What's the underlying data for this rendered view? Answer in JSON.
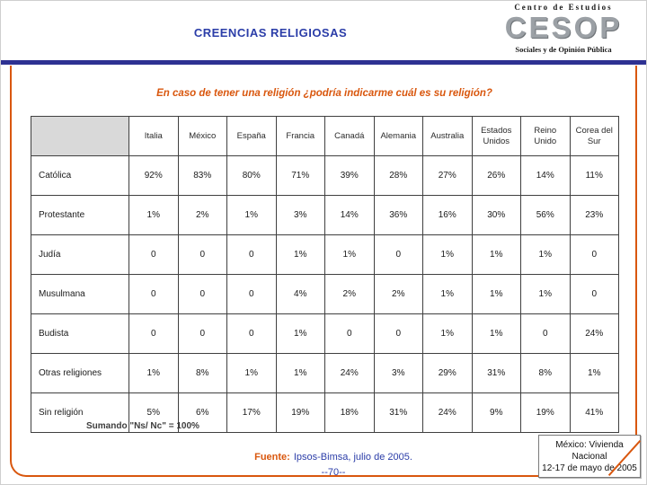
{
  "header": {
    "title": "CREENCIAS RELIGIOSAS",
    "logo": {
      "top": "Centro de Estudios",
      "main": "CESOP",
      "bottom": "Sociales y de Opinión Pública"
    }
  },
  "question": "En caso de tener una religión ¿podría indicarme cuál es su religión?",
  "chart_data": {
    "type": "table",
    "columns": [
      "",
      "Italia",
      "México",
      "España",
      "Francia",
      "Canadá",
      "Alemania",
      "Australia",
      "Estados Unidos",
      "Reino Unido",
      "Corea del Sur"
    ],
    "rows": [
      {
        "label": "Católica",
        "values": [
          "92%",
          "83%",
          "80%",
          "71%",
          "39%",
          "28%",
          "27%",
          "26%",
          "14%",
          "11%"
        ]
      },
      {
        "label": "Protestante",
        "values": [
          "1%",
          "2%",
          "1%",
          "3%",
          "14%",
          "36%",
          "16%",
          "30%",
          "56%",
          "23%"
        ]
      },
      {
        "label": "Judía",
        "values": [
          "0",
          "0",
          "0",
          "1%",
          "1%",
          "0",
          "1%",
          "1%",
          "1%",
          "0"
        ]
      },
      {
        "label": "Musulmana",
        "values": [
          "0",
          "0",
          "0",
          "4%",
          "2%",
          "2%",
          "1%",
          "1%",
          "1%",
          "0"
        ]
      },
      {
        "label": "Budista",
        "values": [
          "0",
          "0",
          "0",
          "1%",
          "0",
          "0",
          "1%",
          "1%",
          "0",
          "24%"
        ]
      },
      {
        "label": "Otras religiones",
        "values": [
          "1%",
          "8%",
          "1%",
          "1%",
          "24%",
          "3%",
          "29%",
          "31%",
          "8%",
          "1%"
        ]
      },
      {
        "label": "Sin religión",
        "values": [
          "5%",
          "6%",
          "17%",
          "19%",
          "18%",
          "31%",
          "24%",
          "9%",
          "19%",
          "41%"
        ]
      }
    ]
  },
  "footer": {
    "note": "Sumando \"Ns/ Nc\" = 100%",
    "source_label": "Fuente:",
    "source_text": "Ipsos-Bimsa, julio de 2005.",
    "page_number": "--70--",
    "box_lines": [
      "México: Vivienda",
      "Nacional",
      "12-17 de mayo de 2005"
    ]
  },
  "colors": {
    "title_blue": "#2B3DA8",
    "bar_blue": "#2E3192",
    "accent_orange": "#D9570E"
  }
}
